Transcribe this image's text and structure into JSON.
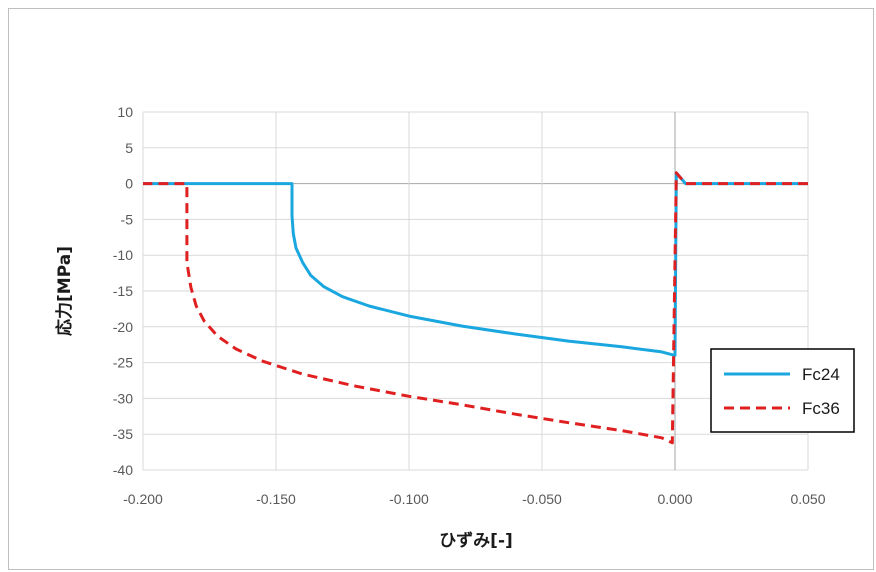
{
  "chart_data": {
    "type": "line",
    "xlabel": "ひずみ[-]",
    "ylabel": "応力[MPa]",
    "xlim": [
      -0.2,
      0.05
    ],
    "ylim": [
      -40,
      10
    ],
    "x_ticks": [
      "-0.200",
      "-0.150",
      "-0.100",
      "-0.050",
      "0.000",
      "0.050"
    ],
    "x_tick_values": [
      -0.2,
      -0.15,
      -0.1,
      -0.05,
      0.0,
      0.05
    ],
    "y_ticks": [
      "10",
      "5",
      "0",
      "-5",
      "-10",
      "-15",
      "-20",
      "-25",
      "-30",
      "-35",
      "-40"
    ],
    "y_tick_values": [
      10,
      5,
      0,
      -5,
      -10,
      -15,
      -20,
      -25,
      -30,
      -35,
      -40
    ],
    "grid": true,
    "legend_position": "right",
    "series": [
      {
        "name": "Fc24",
        "color": "#1aa7e0",
        "dash": "solid",
        "x": [
          0.05,
          0.004,
          0.0005,
          0.0,
          -0.005,
          -0.02,
          -0.04,
          -0.06,
          -0.08,
          -0.1,
          -0.115,
          -0.125,
          -0.132,
          -0.137,
          -0.14,
          -0.1425,
          -0.1435,
          -0.144,
          -0.144,
          -0.15,
          -0.2
        ],
        "y": [
          0,
          0,
          1.5,
          -24,
          -23.5,
          -22.8,
          -22,
          -21,
          -19.9,
          -18.5,
          -17.1,
          -15.8,
          -14.4,
          -12.8,
          -11,
          -9,
          -7,
          -4.5,
          0,
          0,
          0
        ]
      },
      {
        "name": "Fc36",
        "color": "#e02020",
        "dash": "dashed",
        "x": [
          0.05,
          0.004,
          0.0005,
          -0.001,
          -0.005,
          -0.02,
          -0.04,
          -0.06,
          -0.08,
          -0.1,
          -0.12,
          -0.14,
          -0.155,
          -0.165,
          -0.172,
          -0.177,
          -0.18,
          -0.182,
          -0.1835,
          -0.1835,
          -0.2
        ],
        "y": [
          0,
          0,
          1.5,
          -36.2,
          -35.5,
          -34.5,
          -33.4,
          -32.2,
          -30.9,
          -29.7,
          -28.3,
          -26.6,
          -24.8,
          -23.1,
          -21.3,
          -19.2,
          -17.1,
          -14.5,
          -11,
          0,
          0
        ]
      }
    ]
  }
}
